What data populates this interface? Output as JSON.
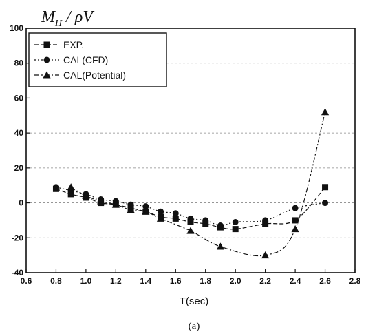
{
  "chart_data": {
    "type": "line",
    "title": "",
    "ylabel": "M_H / ρV",
    "ylabel_parts": {
      "main": "M",
      "sub": "H",
      "rest": " / ρV"
    },
    "xlabel": "T(sec)",
    "caption": "(a)",
    "xlim": [
      0.6,
      2.8
    ],
    "ylim": [
      -40,
      100
    ],
    "xticks": [
      0.6,
      0.8,
      1.0,
      1.2,
      1.4,
      1.6,
      1.8,
      2.0,
      2.2,
      2.4,
      2.6,
      2.8
    ],
    "xtick_labels": [
      "0.6",
      "0.8",
      "1.0",
      "1.2",
      "1.4",
      "1.6",
      "1.8",
      "2.0",
      "2.2",
      "2.4",
      "2.6",
      "2.8"
    ],
    "yticks": [
      -40,
      -20,
      0,
      20,
      40,
      60,
      80,
      100
    ],
    "ytick_labels": [
      "-40",
      "-20",
      "0",
      "20",
      "40",
      "60",
      "80",
      "100"
    ],
    "grid": true,
    "legend_position": "top-left",
    "series": [
      {
        "name": "EXP.",
        "marker": "square",
        "color": "#111111",
        "x": [
          0.8,
          0.9,
          1.0,
          1.1,
          1.2,
          1.3,
          1.4,
          1.5,
          1.6,
          1.7,
          1.8,
          1.9,
          2.0,
          2.2,
          2.4,
          2.6
        ],
        "y": [
          8,
          5,
          3,
          0,
          -1,
          -3,
          -5,
          -8,
          -9,
          -11,
          -12,
          -14,
          -15,
          -12,
          -10,
          9
        ]
      },
      {
        "name": "CAL(CFD)",
        "marker": "circle",
        "color": "#111111",
        "x": [
          0.8,
          0.9,
          1.0,
          1.1,
          1.2,
          1.3,
          1.4,
          1.5,
          1.6,
          1.7,
          1.8,
          1.9,
          2.0,
          2.2,
          2.4,
          2.6
        ],
        "y": [
          9,
          7,
          5,
          2,
          1,
          -1,
          -2,
          -5,
          -6,
          -9,
          -10,
          -13,
          -11,
          -10,
          -3,
          0
        ]
      },
      {
        "name": "CAL(Potential)",
        "marker": "triangle",
        "color": "#111111",
        "x": [
          0.9,
          1.0,
          1.1,
          1.2,
          1.3,
          1.4,
          1.5,
          1.7,
          1.9,
          2.2,
          2.4,
          2.6
        ],
        "y": [
          9,
          4,
          1,
          -1,
          -4,
          -5,
          -9,
          -16,
          -25,
          -30,
          -15,
          52
        ]
      }
    ]
  }
}
